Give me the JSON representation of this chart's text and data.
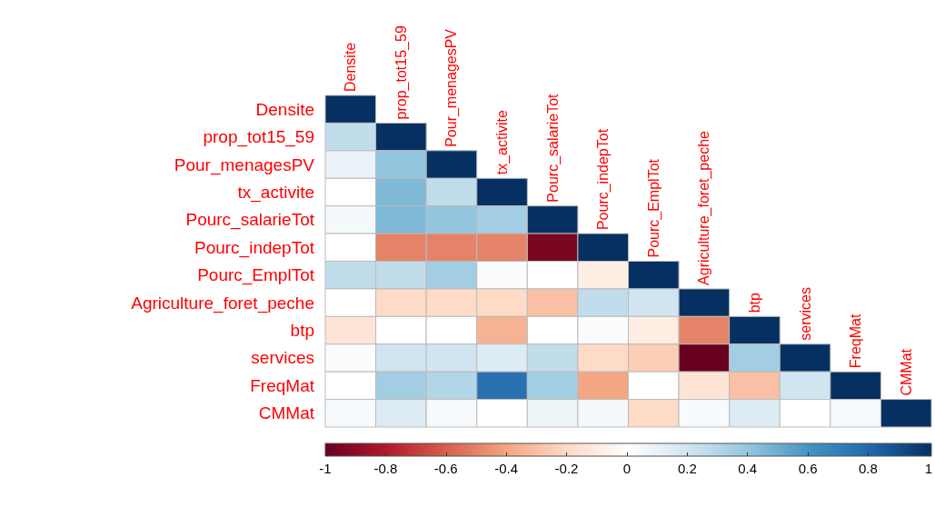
{
  "chart_data": {
    "type": "heatmap",
    "categories": [
      "Densite",
      "prop_tot15_59",
      "Pour_menagesPV",
      "tx_activite",
      "Pourc_salarieTot",
      "Pourc_indepTot",
      "Pourc_EmplTot",
      "Agriculture_foret_peche",
      "btp",
      "services",
      "FreqMat",
      "CMMat"
    ],
    "y_categories": [
      "Densite",
      "prop_tot15_59",
      "Pour_menagesPV",
      "tx_activite",
      "Pourc_salarieTot",
      "Pourc_indepTot",
      "Pourc_EmplTot",
      "Agriculture_foret_peche",
      "btp",
      "services",
      "FreqMat",
      "CMMat"
    ],
    "cells": [
      [
        1,
        null,
        null,
        null,
        null,
        null,
        null,
        null,
        null,
        null,
        null,
        null
      ],
      [
        0.25,
        1,
        null,
        null,
        null,
        null,
        null,
        null,
        null,
        null,
        null,
        null
      ],
      [
        0.1,
        0.4,
        1,
        null,
        null,
        null,
        null,
        null,
        null,
        null,
        null,
        null
      ],
      [
        0,
        0.45,
        0.25,
        1,
        null,
        null,
        null,
        null,
        null,
        null,
        null,
        null
      ],
      [
        0.05,
        0.45,
        0.4,
        0.35,
        1,
        null,
        null,
        null,
        null,
        null,
        null,
        null
      ],
      [
        0,
        -0.5,
        -0.5,
        -0.5,
        -0.95,
        1,
        null,
        null,
        null,
        null,
        null,
        null
      ],
      [
        0.25,
        0.25,
        0.35,
        0.02,
        0,
        -0.1,
        1,
        null,
        null,
        null,
        null,
        null
      ],
      [
        0,
        -0.2,
        -0.2,
        -0.2,
        -0.3,
        0.25,
        0.2,
        1,
        null,
        null,
        null,
        null
      ],
      [
        -0.15,
        0,
        0,
        -0.35,
        0,
        0.02,
        -0.1,
        -0.5,
        1,
        null,
        null,
        null
      ],
      [
        0.02,
        0.2,
        0.2,
        0.15,
        0.25,
        -0.2,
        -0.25,
        -1,
        0.35,
        1,
        null,
        null
      ],
      [
        0,
        0.35,
        0.3,
        0.75,
        0.35,
        -0.4,
        0,
        -0.15,
        -0.3,
        0.2,
        1,
        null
      ],
      [
        0.03,
        0.15,
        0.03,
        0,
        0.08,
        0.05,
        -0.2,
        0.03,
        0.15,
        0,
        0.03,
        1
      ]
    ],
    "clim": [
      -1,
      1
    ],
    "cticks": [
      -1,
      -0.8,
      -0.6,
      -0.4,
      -0.2,
      0,
      0.2,
      0.4,
      0.6,
      0.8,
      1
    ]
  }
}
